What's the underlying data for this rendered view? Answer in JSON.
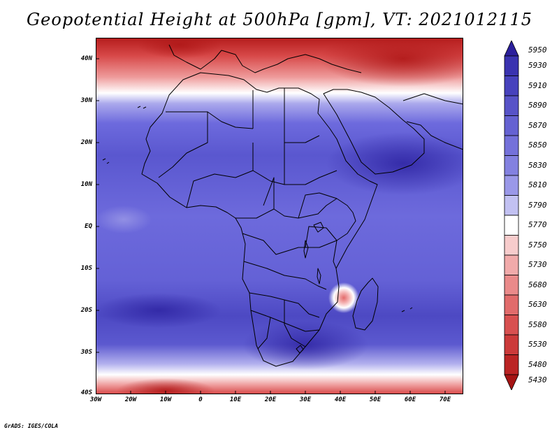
{
  "title": "Geopotential Height at 500hPa [gpm], VT: 2021012115",
  "credit": "GrADS: IGES/COLA",
  "map": {
    "region": "Africa",
    "lat_ticks": [
      "40N",
      "30N",
      "20N",
      "10N",
      "EQ",
      "10S",
      "20S",
      "30S",
      "40S"
    ],
    "lon_ticks": [
      "30W",
      "20W",
      "10W",
      "0",
      "10E",
      "20E",
      "30E",
      "40E",
      "50E",
      "60E",
      "70E"
    ]
  },
  "colorbar": {
    "levels": [
      5950,
      5930,
      5910,
      5890,
      5870,
      5850,
      5830,
      5810,
      5790,
      5770,
      5750,
      5730,
      5680,
      5630,
      5580,
      5530,
      5480,
      5430
    ],
    "labels": [
      "5950",
      "5930",
      "5910",
      "5890",
      "5870",
      "5850",
      "5830",
      "5810",
      "5790",
      "5770",
      "5750",
      "5730",
      "5680",
      "5630",
      "5580",
      "5530",
      "5480",
      "5430"
    ],
    "colors": [
      "#2b1f9c",
      "#3a33b0",
      "#4742bd",
      "#5753c8",
      "#6562d2",
      "#7471da",
      "#8381e0",
      "#9a98e8",
      "#c2c1f2",
      "#ffffff",
      "#f7cccc",
      "#f1aaaa",
      "#ea8a8a",
      "#e16b6b",
      "#d85050",
      "#cc3a3a",
      "#bb2424",
      "#a51414"
    ]
  }
}
